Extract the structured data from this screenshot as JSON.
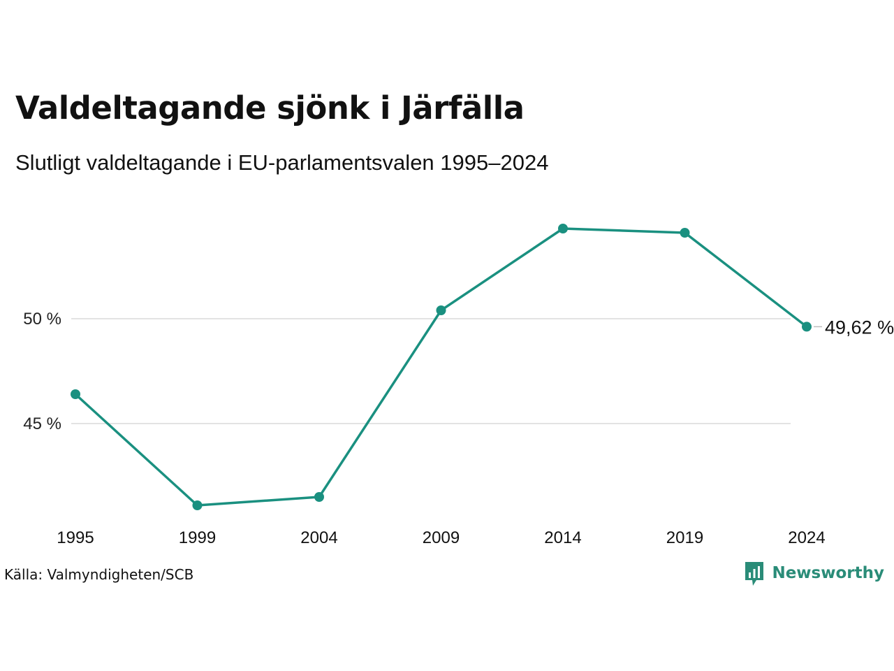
{
  "header": {
    "title": "Valdeltagande sjönk i Järfälla",
    "subtitle": "Slutligt valdeltagande i EU-parlamentsvalen 1995–2024"
  },
  "footer": {
    "source": "Källa: Valmyndigheten/SCB",
    "brand": "Newsworthy",
    "brand_color": "#2a8c78"
  },
  "chart_data": {
    "type": "line",
    "categories": [
      "1995",
      "1999",
      "2004",
      "2009",
      "2014",
      "2019",
      "2024"
    ],
    "series": [
      {
        "values": [
          46.4,
          41.1,
          41.5,
          50.4,
          54.3,
          54.1,
          49.62
        ],
        "color": "#1a9080"
      }
    ],
    "yticks": [
      {
        "value": 45,
        "label": "45 %"
      },
      {
        "value": 50,
        "label": "50 %"
      }
    ],
    "ylim": [
      40,
      56
    ],
    "grid": true,
    "end_label": "49,62 %",
    "gridline_color": "#e3e3e3"
  }
}
